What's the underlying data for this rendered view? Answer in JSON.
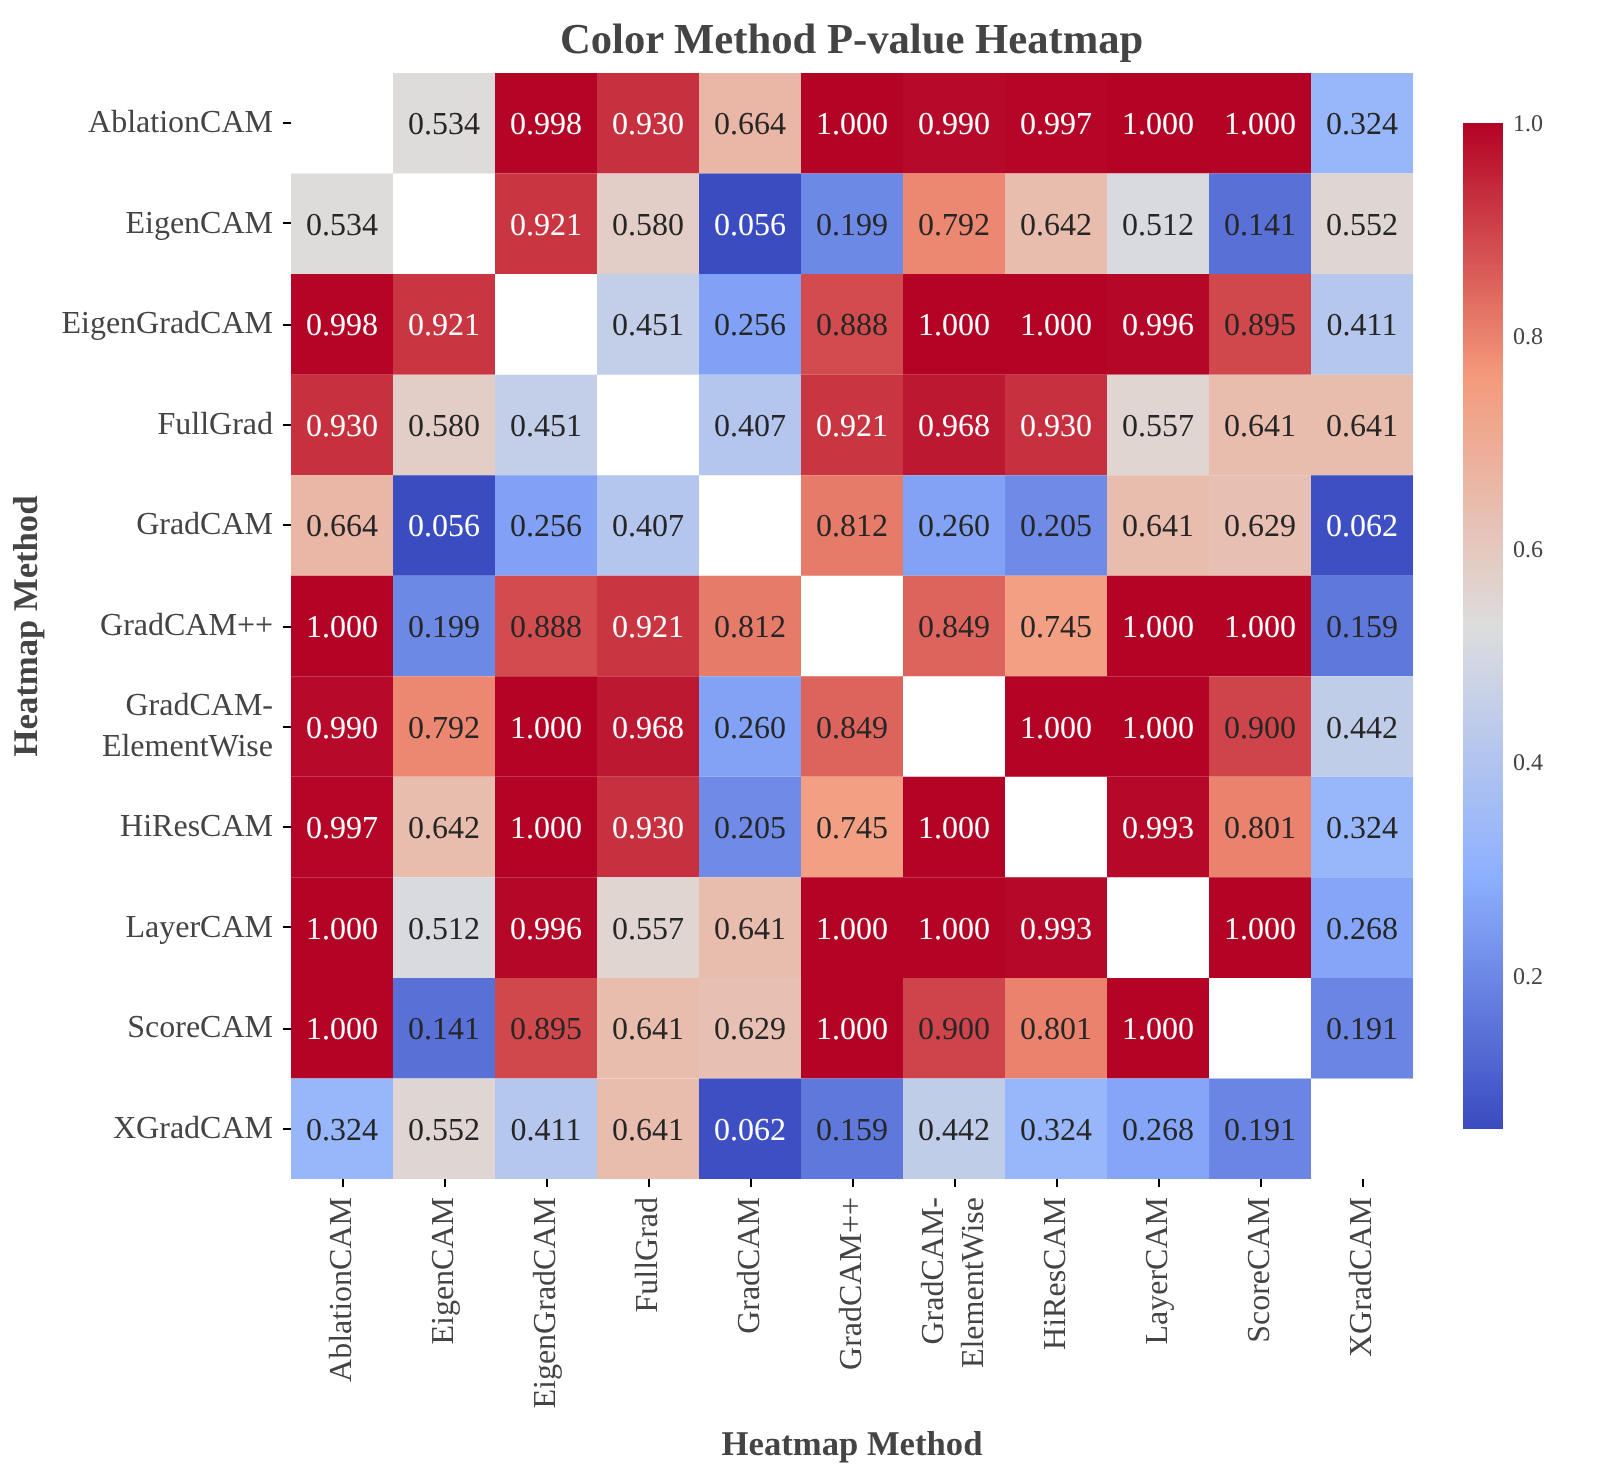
{
  "chart_data": {
    "type": "heatmap",
    "title": "Color Method P-value Heatmap",
    "xlabel": "Heatmap Method",
    "ylabel": "Heatmap Method",
    "categories": [
      "AblationCAM",
      "EigenCAM",
      "EigenGradCAM",
      "FullGrad",
      "GradCAM",
      "GradCAM++",
      "GradCAM-\nElementWise",
      "HiResCAM",
      "LayerCAM",
      "ScoreCAM",
      "XGradCAM"
    ],
    "y_categories": [
      "AblationCAM",
      "EigenCAM",
      "EigenGradCAM",
      "FullGrad",
      "GradCAM",
      "GradCAM++",
      "GradCAM-\nElementWise",
      "HiResCAM",
      "LayerCAM",
      "ScoreCAM",
      "XGradCAM"
    ],
    "cells": [
      [
        null,
        0.534,
        0.998,
        0.93,
        0.664,
        1.0,
        0.99,
        0.997,
        1.0,
        1.0,
        0.324
      ],
      [
        0.534,
        null,
        0.921,
        0.58,
        0.056,
        0.199,
        0.792,
        0.642,
        0.512,
        0.141,
        0.552
      ],
      [
        0.998,
        0.921,
        null,
        0.451,
        0.256,
        0.888,
        1.0,
        1.0,
        0.996,
        0.895,
        0.411
      ],
      [
        0.93,
        0.58,
        0.451,
        null,
        0.407,
        0.921,
        0.968,
        0.93,
        0.557,
        0.641,
        0.641
      ],
      [
        0.664,
        0.056,
        0.256,
        0.407,
        null,
        0.812,
        0.26,
        0.205,
        0.641,
        0.629,
        0.062
      ],
      [
        1.0,
        0.199,
        0.888,
        0.921,
        0.812,
        null,
        0.849,
        0.745,
        1.0,
        1.0,
        0.159
      ],
      [
        0.99,
        0.792,
        1.0,
        0.968,
        0.26,
        0.849,
        null,
        1.0,
        1.0,
        0.9,
        0.442
      ],
      [
        0.997,
        0.642,
        1.0,
        0.93,
        0.205,
        0.745,
        1.0,
        null,
        0.993,
        0.801,
        0.324
      ],
      [
        1.0,
        0.512,
        0.996,
        0.557,
        0.641,
        1.0,
        1.0,
        0.993,
        null,
        1.0,
        0.268
      ],
      [
        1.0,
        0.141,
        0.895,
        0.641,
        0.629,
        1.0,
        0.9,
        0.801,
        1.0,
        null,
        0.191
      ],
      [
        0.324,
        0.552,
        0.411,
        0.641,
        0.062,
        0.159,
        0.442,
        0.324,
        0.268,
        0.191,
        null
      ]
    ],
    "cell_labels": [
      [
        null,
        "0.534",
        "0.998",
        "0.930",
        "0.664",
        "1.000",
        "0.990",
        "0.997",
        "1.000",
        "1.000",
        "0.324"
      ],
      [
        "0.534",
        null,
        "0.921",
        "0.580",
        "0.056",
        "0.199",
        "0.792",
        "0.642",
        "0.512",
        "0.141",
        "0.552"
      ],
      [
        "0.998",
        "0.921",
        null,
        "0.451",
        "0.256",
        "0.888",
        "1.000",
        "1.000",
        "0.996",
        "0.895",
        "0.411"
      ],
      [
        "0.930",
        "0.580",
        "0.451",
        null,
        "0.407",
        "0.921",
        "0.968",
        "0.930",
        "0.557",
        "0.641",
        "0.641"
      ],
      [
        "0.664",
        "0.056",
        "0.256",
        "0.407",
        null,
        "0.812",
        "0.260",
        "0.205",
        "0.641",
        "0.629",
        "0.062"
      ],
      [
        "1.000",
        "0.199",
        "0.888",
        "0.921",
        "0.812",
        null,
        "0.849",
        "0.745",
        "1.000",
        "1.000",
        "0.159"
      ],
      [
        "0.990",
        "0.792",
        "1.000",
        "0.968",
        "0.260",
        "0.849",
        null,
        "1.000",
        "1.000",
        "0.900",
        "0.442"
      ],
      [
        "0.997",
        "0.642",
        "1.000",
        "0.930",
        "0.205",
        "0.745",
        "1.000",
        null,
        "0.993",
        "0.801",
        "0.324"
      ],
      [
        "1.000",
        "0.512",
        "0.996",
        "0.557",
        "0.641",
        "1.000",
        "1.000",
        "0.993",
        null,
        "1.000",
        "0.268"
      ],
      [
        "1.000",
        "0.141",
        "0.895",
        "0.641",
        "0.629",
        "1.000",
        "0.900",
        "0.801",
        "1.000",
        null,
        "0.191"
      ],
      [
        "0.324",
        "0.552",
        "0.411",
        "0.641",
        "0.062",
        "0.159",
        "0.442",
        "0.324",
        "0.268",
        "0.191",
        null
      ]
    ],
    "clim": [
      0.056,
      1.0
    ],
    "cticks": [
      0.2,
      0.4,
      0.6,
      0.8,
      {
        "value": 1.0,
        "label": "1.0"
      }
    ],
    "data_labels": true
  }
}
